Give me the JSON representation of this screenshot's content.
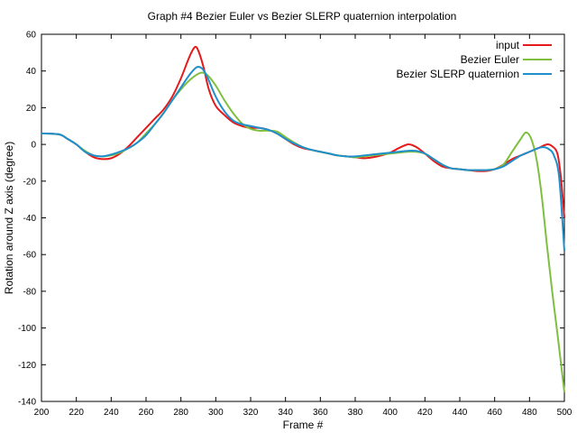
{
  "chart_data": {
    "type": "line",
    "title": "Graph #4 Bezier Euler vs Bezier SLERP quaternion interpolation",
    "xlabel": "Frame #",
    "ylabel": "Rotation around Z axis (degree)",
    "xlim": [
      200,
      500
    ],
    "ylim": [
      -140,
      60
    ],
    "xticks": [
      200,
      220,
      240,
      260,
      280,
      300,
      320,
      340,
      360,
      380,
      400,
      420,
      440,
      460,
      480,
      500
    ],
    "yticks": [
      60,
      40,
      20,
      0,
      -20,
      -40,
      -60,
      -80,
      -100,
      -120,
      -140
    ],
    "grid": false,
    "legend_position": "top-right",
    "series": [
      {
        "name": "input",
        "color": "#e41a1c",
        "points": [
          [
            200,
            6
          ],
          [
            210,
            5.5
          ],
          [
            215,
            3
          ],
          [
            220,
            0
          ],
          [
            225,
            -4
          ],
          [
            230,
            -7
          ],
          [
            235,
            -8
          ],
          [
            240,
            -7.5
          ],
          [
            245,
            -5
          ],
          [
            250,
            -1
          ],
          [
            255,
            4
          ],
          [
            260,
            9
          ],
          [
            265,
            14
          ],
          [
            270,
            19
          ],
          [
            275,
            26
          ],
          [
            280,
            36
          ],
          [
            285,
            48
          ],
          [
            288,
            53
          ],
          [
            290,
            51
          ],
          [
            293,
            42
          ],
          [
            296,
            30
          ],
          [
            300,
            21
          ],
          [
            305,
            16
          ],
          [
            310,
            12
          ],
          [
            315,
            10
          ],
          [
            320,
            9
          ],
          [
            325,
            9
          ],
          [
            330,
            8
          ],
          [
            335,
            6
          ],
          [
            340,
            3
          ],
          [
            345,
            0
          ],
          [
            350,
            -2
          ],
          [
            355,
            -3
          ],
          [
            360,
            -4
          ],
          [
            365,
            -5
          ],
          [
            370,
            -6
          ],
          [
            375,
            -6.5
          ],
          [
            380,
            -7
          ],
          [
            385,
            -7.5
          ],
          [
            390,
            -7
          ],
          [
            395,
            -6
          ],
          [
            400,
            -4.5
          ],
          [
            405,
            -2
          ],
          [
            410,
            0
          ],
          [
            413,
            -0.5
          ],
          [
            416,
            -2
          ],
          [
            420,
            -5
          ],
          [
            425,
            -9
          ],
          [
            430,
            -12
          ],
          [
            435,
            -13
          ],
          [
            440,
            -13.5
          ],
          [
            445,
            -14
          ],
          [
            450,
            -14.5
          ],
          [
            455,
            -14.5
          ],
          [
            460,
            -13.5
          ],
          [
            465,
            -11
          ],
          [
            470,
            -8
          ],
          [
            475,
            -6
          ],
          [
            480,
            -4
          ],
          [
            485,
            -2
          ],
          [
            490,
            0
          ],
          [
            493,
            -1
          ],
          [
            496,
            -5
          ],
          [
            498,
            -18
          ],
          [
            500,
            -40
          ]
        ]
      },
      {
        "name": "Bezier Euler",
        "color": "#7fbf3f",
        "points": [
          [
            200,
            6
          ],
          [
            210,
            5.5
          ],
          [
            215,
            3
          ],
          [
            220,
            0
          ],
          [
            225,
            -3.5
          ],
          [
            230,
            -6
          ],
          [
            235,
            -6.5
          ],
          [
            240,
            -6
          ],
          [
            245,
            -4.5
          ],
          [
            250,
            -2
          ],
          [
            255,
            1
          ],
          [
            260,
            6
          ],
          [
            265,
            11
          ],
          [
            270,
            17
          ],
          [
            275,
            24
          ],
          [
            280,
            30
          ],
          [
            285,
            35
          ],
          [
            290,
            38.5
          ],
          [
            293,
            39
          ],
          [
            296,
            37
          ],
          [
            300,
            32
          ],
          [
            305,
            24
          ],
          [
            310,
            17
          ],
          [
            315,
            11.5
          ],
          [
            320,
            8.5
          ],
          [
            325,
            7.5
          ],
          [
            330,
            7.5
          ],
          [
            335,
            7
          ],
          [
            340,
            4
          ],
          [
            345,
            1
          ],
          [
            350,
            -1.5
          ],
          [
            355,
            -3
          ],
          [
            360,
            -4
          ],
          [
            365,
            -5
          ],
          [
            370,
            -6
          ],
          [
            375,
            -6.5
          ],
          [
            380,
            -7
          ],
          [
            385,
            -6.5
          ],
          [
            390,
            -6
          ],
          [
            395,
            -5.5
          ],
          [
            400,
            -5
          ],
          [
            405,
            -4.5
          ],
          [
            410,
            -4
          ],
          [
            415,
            -4
          ],
          [
            420,
            -5
          ],
          [
            425,
            -8
          ],
          [
            430,
            -11
          ],
          [
            435,
            -13
          ],
          [
            440,
            -13.5
          ],
          [
            445,
            -14
          ],
          [
            450,
            -14
          ],
          [
            455,
            -14
          ],
          [
            460,
            -13.5
          ],
          [
            465,
            -11
          ],
          [
            470,
            -4
          ],
          [
            475,
            3
          ],
          [
            478,
            6.5
          ],
          [
            481,
            3
          ],
          [
            484,
            -8
          ],
          [
            487,
            -28
          ],
          [
            490,
            -55
          ],
          [
            493,
            -80
          ],
          [
            496,
            -103
          ],
          [
            500,
            -135
          ]
        ]
      },
      {
        "name": "Bezier SLERP quaternion",
        "color": "#1f8fcc",
        "points": [
          [
            200,
            6
          ],
          [
            210,
            5.5
          ],
          [
            215,
            3
          ],
          [
            220,
            0
          ],
          [
            225,
            -4
          ],
          [
            230,
            -6
          ],
          [
            235,
            -6.5
          ],
          [
            240,
            -5.5
          ],
          [
            245,
            -4
          ],
          [
            250,
            -2
          ],
          [
            255,
            1
          ],
          [
            260,
            5
          ],
          [
            265,
            11
          ],
          [
            270,
            17
          ],
          [
            275,
            24
          ],
          [
            280,
            31
          ],
          [
            285,
            38
          ],
          [
            289,
            42
          ],
          [
            292,
            41.5
          ],
          [
            295,
            37
          ],
          [
            300,
            26
          ],
          [
            305,
            18
          ],
          [
            310,
            13
          ],
          [
            315,
            11
          ],
          [
            320,
            10
          ],
          [
            325,
            9
          ],
          [
            330,
            8
          ],
          [
            335,
            6
          ],
          [
            340,
            3
          ],
          [
            345,
            0.5
          ],
          [
            350,
            -1.5
          ],
          [
            355,
            -3
          ],
          [
            360,
            -4
          ],
          [
            365,
            -5
          ],
          [
            370,
            -6
          ],
          [
            375,
            -6.5
          ],
          [
            380,
            -6.5
          ],
          [
            385,
            -6
          ],
          [
            390,
            -5.5
          ],
          [
            395,
            -5
          ],
          [
            400,
            -4.5
          ],
          [
            405,
            -4
          ],
          [
            410,
            -3.5
          ],
          [
            415,
            -3.5
          ],
          [
            420,
            -5
          ],
          [
            425,
            -8
          ],
          [
            430,
            -11
          ],
          [
            435,
            -13
          ],
          [
            440,
            -13.5
          ],
          [
            445,
            -14
          ],
          [
            450,
            -14
          ],
          [
            455,
            -14
          ],
          [
            460,
            -13.5
          ],
          [
            465,
            -12
          ],
          [
            470,
            -9
          ],
          [
            475,
            -6
          ],
          [
            480,
            -4
          ],
          [
            485,
            -2
          ],
          [
            488,
            -1.5
          ],
          [
            491,
            -2.5
          ],
          [
            494,
            -6
          ],
          [
            497,
            -18
          ],
          [
            500,
            -58
          ]
        ]
      }
    ]
  }
}
